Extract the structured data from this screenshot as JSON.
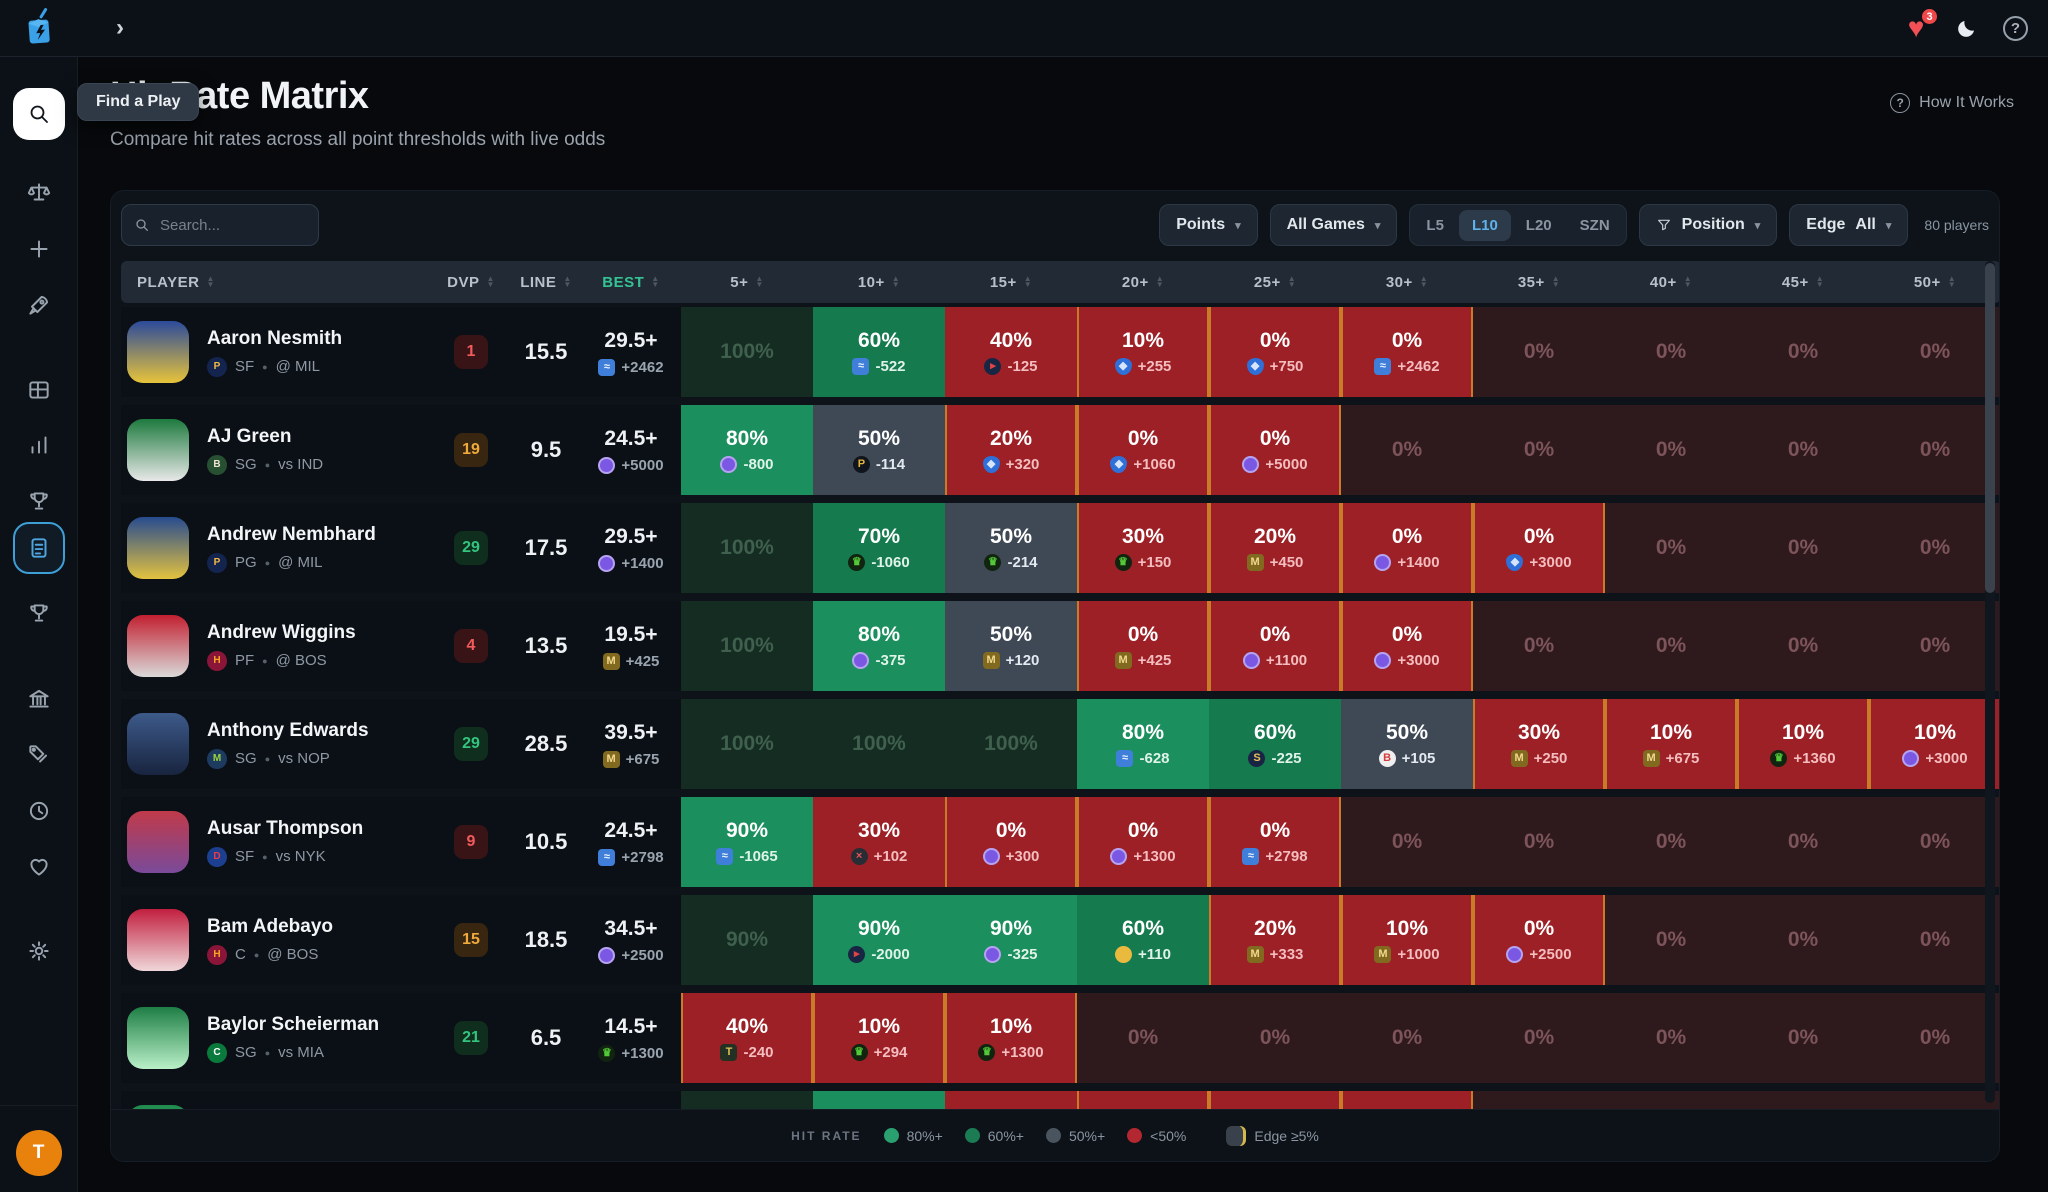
{
  "topbar": {
    "heart_badge": "3"
  },
  "sidebar": {
    "tooltip": "Find a Play",
    "avatar_initial": "T"
  },
  "header": {
    "title": "Hit Rate Matrix",
    "subtitle": "Compare hit rates across all point thresholds with live odds",
    "how_it_works": "How It Works"
  },
  "filters": {
    "search_placeholder": "Search...",
    "points_label": "Points",
    "games_label": "All Games",
    "window_options": [
      "L5",
      "L10",
      "L20",
      "SZN"
    ],
    "window_active": "L10",
    "position_label": "Position",
    "edge_label": "Edge",
    "edge_value": "All",
    "players_count": "80 players"
  },
  "legend": {
    "label": "HIT RATE",
    "items": [
      {
        "label": "80%+",
        "color": "#2aa071"
      },
      {
        "label": "60%+",
        "color": "#1b7b52"
      },
      {
        "label": "50%+",
        "color": "#4a545f"
      },
      {
        "label": "<50%",
        "color": "#b32730"
      }
    ],
    "edge_label": "Edge ≥5%"
  },
  "books": {
    "blue": {
      "bg": "#3f7fd9",
      "fg": "#eaf2fd",
      "glyph": "≈",
      "shape": "sq"
    },
    "fanatics": {
      "bg": "#182644",
      "fg": "#e04545",
      "glyph": "▸",
      "shape": "ci"
    },
    "shield": {
      "bg": "#2e6fd8",
      "fg": "#d6e5fb",
      "glyph": "◆",
      "shape": "sh"
    },
    "purple": {
      "bg": "#7b58e3",
      "fg": "#efeafd",
      "glyph": "",
      "shape": "ci ring"
    },
    "dk": {
      "bg": "#11240f",
      "fg": "#53c938",
      "glyph": "♛",
      "shape": "ci"
    },
    "mgm": {
      "bg": "#816a1f",
      "fg": "#f2d88c",
      "glyph": "M",
      "shape": "sq"
    },
    "pp": {
      "bg": "#10141c",
      "fg": "#e3b43c",
      "glyph": "P",
      "shape": "ci"
    },
    "sleeper": {
      "bg": "#192445",
      "fg": "#e9c255",
      "glyph": "S",
      "shape": "ci"
    },
    "x": {
      "bg": "#282c35",
      "fg": "#e25555",
      "glyph": "×",
      "shape": "ci"
    },
    "yellow": {
      "bg": "#eaba3e",
      "fg": "#7c5a11",
      "glyph": "",
      "shape": "ci"
    },
    "caesars": {
      "bg": "#233024",
      "fg": "#dcbf55",
      "glyph": "T",
      "shape": "sq"
    },
    "bally": {
      "bg": "#efefef",
      "fg": "#d23c3c",
      "glyph": "B",
      "shape": "ci"
    }
  },
  "table": {
    "columns": [
      "PLAYER",
      "DVP",
      "LINE",
      "BEST"
    ],
    "thresholds": [
      "5+",
      "10+",
      "15+",
      "20+",
      "25+",
      "30+",
      "35+",
      "40+",
      "45+",
      "50+"
    ],
    "rows": [
      {
        "name": "Aaron Nesmith",
        "pos": "SF",
        "opp": "@ MIL",
        "team": {
          "glyph": "P",
          "bg": "#13244f",
          "fg": "#f5b942"
        },
        "avatar": [
          "#2b4a9b",
          "#e8c43a"
        ],
        "dvp": {
          "value": "1",
          "tone": "red"
        },
        "line": "15.5",
        "best": {
          "value": "29.5+",
          "odds": "+2462",
          "book": "blue"
        },
        "cells": [
          {
            "p": "100%",
            "t": "mg"
          },
          {
            "p": "60%",
            "t": "g6",
            "o": "-522",
            "b": "blue"
          },
          {
            "p": "40%",
            "t": "rd",
            "o": "-125",
            "b": "fanatics"
          },
          {
            "p": "10%",
            "t": "rd",
            "o": "+255",
            "b": "shield",
            "e": true
          },
          {
            "p": "0%",
            "t": "rd",
            "o": "+750",
            "b": "shield",
            "e": true
          },
          {
            "p": "0%",
            "t": "rd",
            "o": "+2462",
            "b": "blue",
            "e": true
          },
          {
            "p": "0%",
            "t": "mr"
          },
          {
            "p": "0%",
            "t": "mr"
          },
          {
            "p": "0%",
            "t": "mr"
          },
          {
            "p": "0%",
            "t": "mr"
          }
        ]
      },
      {
        "name": "AJ Green",
        "pos": "SG",
        "opp": "vs IND",
        "team": {
          "glyph": "B",
          "bg": "#274f32",
          "fg": "#eee5ce"
        },
        "avatar": [
          "#1d7a3e",
          "#e8e8e8"
        ],
        "dvp": {
          "value": "19",
          "tone": "amber"
        },
        "line": "9.5",
        "best": {
          "value": "24.5+",
          "odds": "+5000",
          "book": "purple"
        },
        "cells": [
          {
            "p": "80%",
            "t": "g8",
            "o": "-800",
            "b": "purple"
          },
          {
            "p": "50%",
            "t": "sl",
            "o": "-114",
            "b": "pp"
          },
          {
            "p": "20%",
            "t": "rd",
            "o": "+320",
            "b": "shield",
            "e": true
          },
          {
            "p": "0%",
            "t": "rd",
            "o": "+1060",
            "b": "shield",
            "e": true
          },
          {
            "p": "0%",
            "t": "rd",
            "o": "+5000",
            "b": "purple",
            "e": true
          },
          {
            "p": "0%",
            "t": "mr"
          },
          {
            "p": "0%",
            "t": "mr"
          },
          {
            "p": "0%",
            "t": "mr"
          },
          {
            "p": "0%",
            "t": "mr"
          },
          {
            "p": "0%",
            "t": "mr"
          }
        ]
      },
      {
        "name": "Andrew Nembhard",
        "pos": "PG",
        "opp": "@ MIL",
        "team": {
          "glyph": "P",
          "bg": "#13244f",
          "fg": "#f5b942"
        },
        "avatar": [
          "#274b8f",
          "#e3c23f"
        ],
        "dvp": {
          "value": "29",
          "tone": "green"
        },
        "line": "17.5",
        "best": {
          "value": "29.5+",
          "odds": "+1400",
          "book": "purple"
        },
        "cells": [
          {
            "p": "100%",
            "t": "mg"
          },
          {
            "p": "70%",
            "t": "g6",
            "o": "-1060",
            "b": "dk"
          },
          {
            "p": "50%",
            "t": "sl",
            "o": "-214",
            "b": "dk"
          },
          {
            "p": "30%",
            "t": "rd",
            "o": "+150",
            "b": "dk",
            "e": true
          },
          {
            "p": "20%",
            "t": "rd",
            "o": "+450",
            "b": "mgm",
            "e": true
          },
          {
            "p": "0%",
            "t": "rd",
            "o": "+1400",
            "b": "purple",
            "e": true
          },
          {
            "p": "0%",
            "t": "rd",
            "o": "+3000",
            "b": "shield",
            "e": true
          },
          {
            "p": "0%",
            "t": "mr"
          },
          {
            "p": "0%",
            "t": "mr"
          },
          {
            "p": "0%",
            "t": "mr"
          }
        ]
      },
      {
        "name": "Andrew Wiggins",
        "pos": "PF",
        "opp": "@ BOS",
        "team": {
          "glyph": "H",
          "bg": "#8a1538",
          "fg": "#f5a623"
        },
        "avatar": [
          "#c22030",
          "#d9d9d9"
        ],
        "dvp": {
          "value": "4",
          "tone": "red"
        },
        "line": "13.5",
        "best": {
          "value": "19.5+",
          "odds": "+425",
          "book": "mgm"
        },
        "cells": [
          {
            "p": "100%",
            "t": "mg"
          },
          {
            "p": "80%",
            "t": "g8",
            "o": "-375",
            "b": "purple"
          },
          {
            "p": "50%",
            "t": "sl",
            "o": "+120",
            "b": "mgm"
          },
          {
            "p": "0%",
            "t": "rd",
            "o": "+425",
            "b": "mgm",
            "e": true
          },
          {
            "p": "0%",
            "t": "rd",
            "o": "+1100",
            "b": "purple",
            "e": true
          },
          {
            "p": "0%",
            "t": "rd",
            "o": "+3000",
            "b": "purple",
            "e": true
          },
          {
            "p": "0%",
            "t": "mr"
          },
          {
            "p": "0%",
            "t": "mr"
          },
          {
            "p": "0%",
            "t": "mr"
          },
          {
            "p": "0%",
            "t": "mr"
          }
        ]
      },
      {
        "name": "Anthony Edwards",
        "pos": "SG",
        "opp": "vs NOP",
        "team": {
          "glyph": "M",
          "bg": "#1d3a5f",
          "fg": "#9ad441"
        },
        "avatar": [
          "#3d5a8a",
          "#18243f"
        ],
        "dvp": {
          "value": "29",
          "tone": "green"
        },
        "line": "28.5",
        "best": {
          "value": "39.5+",
          "odds": "+675",
          "book": "mgm"
        },
        "cells": [
          {
            "p": "100%",
            "t": "mg"
          },
          {
            "p": "100%",
            "t": "mg"
          },
          {
            "p": "100%",
            "t": "mg"
          },
          {
            "p": "80%",
            "t": "g8",
            "o": "-628",
            "b": "blue"
          },
          {
            "p": "60%",
            "t": "g6",
            "o": "-225",
            "b": "sleeper"
          },
          {
            "p": "50%",
            "t": "sl",
            "o": "+105",
            "b": "bally"
          },
          {
            "p": "30%",
            "t": "rd",
            "o": "+250",
            "b": "mgm",
            "e": true
          },
          {
            "p": "10%",
            "t": "rd",
            "o": "+675",
            "b": "mgm",
            "e": true
          },
          {
            "p": "10%",
            "t": "rd",
            "o": "+1360",
            "b": "dk",
            "e": true
          },
          {
            "p": "10%",
            "t": "rd",
            "o": "+3000",
            "b": "purple",
            "e": true
          }
        ]
      },
      {
        "name": "Ausar Thompson",
        "pos": "SF",
        "opp": "vs NYK",
        "team": {
          "glyph": "D",
          "bg": "#1d3f8f",
          "fg": "#ed3b4b"
        },
        "avatar": [
          "#c03a4a",
          "#7a4a9a"
        ],
        "dvp": {
          "value": "9",
          "tone": "red"
        },
        "line": "10.5",
        "best": {
          "value": "24.5+",
          "odds": "+2798",
          "book": "blue"
        },
        "cells": [
          {
            "p": "90%",
            "t": "g8",
            "o": "-1065",
            "b": "blue"
          },
          {
            "p": "30%",
            "t": "rd",
            "o": "+102",
            "b": "x"
          },
          {
            "p": "0%",
            "t": "rd",
            "o": "+300",
            "b": "purple",
            "e": true
          },
          {
            "p": "0%",
            "t": "rd",
            "o": "+1300",
            "b": "purple",
            "e": true
          },
          {
            "p": "0%",
            "t": "rd",
            "o": "+2798",
            "b": "blue",
            "e": true
          },
          {
            "p": "0%",
            "t": "mr"
          },
          {
            "p": "0%",
            "t": "mr"
          },
          {
            "p": "0%",
            "t": "mr"
          },
          {
            "p": "0%",
            "t": "mr"
          },
          {
            "p": "0%",
            "t": "mr"
          }
        ]
      },
      {
        "name": "Bam Adebayo",
        "pos": "C",
        "opp": "@ BOS",
        "team": {
          "glyph": "H",
          "bg": "#8a1538",
          "fg": "#f5a623"
        },
        "avatar": [
          "#c21f3f",
          "#efd7d9"
        ],
        "dvp": {
          "value": "15",
          "tone": "amber"
        },
        "line": "18.5",
        "best": {
          "value": "34.5+",
          "odds": "+2500",
          "book": "purple"
        },
        "cells": [
          {
            "p": "90%",
            "t": "mg"
          },
          {
            "p": "90%",
            "t": "g8",
            "o": "-2000",
            "b": "fanatics"
          },
          {
            "p": "90%",
            "t": "g8",
            "o": "-325",
            "b": "purple"
          },
          {
            "p": "60%",
            "t": "g6",
            "o": "+110",
            "b": "yellow"
          },
          {
            "p": "20%",
            "t": "rd",
            "o": "+333",
            "b": "mgm",
            "e": true
          },
          {
            "p": "10%",
            "t": "rd",
            "o": "+1000",
            "b": "mgm",
            "e": true
          },
          {
            "p": "0%",
            "t": "rd",
            "o": "+2500",
            "b": "purple",
            "e": true
          },
          {
            "p": "0%",
            "t": "mr"
          },
          {
            "p": "0%",
            "t": "mr"
          },
          {
            "p": "0%",
            "t": "mr"
          }
        ]
      },
      {
        "name": "Baylor Scheierman",
        "pos": "SG",
        "opp": "vs MIA",
        "team": {
          "glyph": "C",
          "bg": "#0a7a3c",
          "fg": "#ffffff"
        },
        "avatar": [
          "#1e7e45",
          "#baf0c8"
        ],
        "dvp": {
          "value": "21",
          "tone": "green"
        },
        "line": "6.5",
        "best": {
          "value": "14.5+",
          "odds": "+1300",
          "book": "dk"
        },
        "cells": [
          {
            "p": "40%",
            "t": "rd",
            "o": "-240",
            "b": "caesars",
            "e": true
          },
          {
            "p": "10%",
            "t": "rd",
            "o": "+294",
            "b": "dk",
            "e": true
          },
          {
            "p": "10%",
            "t": "rd",
            "o": "+1300",
            "b": "dk",
            "e": true
          },
          {
            "p": "0%",
            "t": "mr"
          },
          {
            "p": "0%",
            "t": "mr"
          },
          {
            "p": "0%",
            "t": "mr"
          },
          {
            "p": "0%",
            "t": "mr"
          },
          {
            "p": "0%",
            "t": "mr"
          },
          {
            "p": "0%",
            "t": "mr"
          },
          {
            "p": "0%",
            "t": "mr"
          }
        ]
      },
      {
        "name": "",
        "pos": "",
        "opp": "",
        "partial": true,
        "team": null,
        "avatar": [
          "#1f8a4d",
          "#74c98f"
        ],
        "dvp": null,
        "line": "",
        "best": null,
        "cells": [
          {
            "p": "",
            "t": "mg"
          },
          {
            "p": "",
            "t": "g8"
          },
          {
            "p": "",
            "t": "rd"
          },
          {
            "p": "",
            "t": "rd",
            "e": true
          },
          {
            "p": "",
            "t": "rd",
            "e": true
          },
          {
            "p": "",
            "t": "rd",
            "e": true
          },
          {
            "p": "",
            "t": "mr"
          },
          {
            "p": "",
            "t": "mr"
          },
          {
            "p": "",
            "t": "mr"
          },
          {
            "p": "",
            "t": "mr"
          }
        ]
      }
    ]
  }
}
